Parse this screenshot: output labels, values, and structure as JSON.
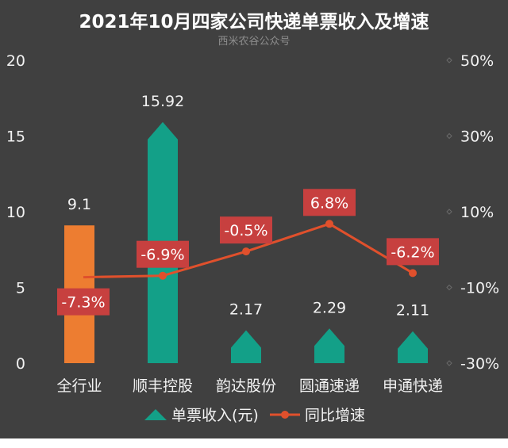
{
  "chart_data": {
    "type": "bar",
    "title": "2021年10月四家公司快递单票收入及增速",
    "subtitle": "西米农谷公众号",
    "categories": [
      "全行业",
      "顺丰控股",
      "韵达股份",
      "圆通速递",
      "申通快递"
    ],
    "series": [
      {
        "name": "单票收入(元)",
        "type": "bar",
        "axis": "left",
        "values": [
          9.1,
          15.92,
          2.17,
          2.29,
          2.11
        ],
        "value_labels": [
          "9.1",
          "15.92",
          "2.17",
          "2.29",
          "2.11"
        ],
        "colors": [
          "#ed7d31",
          "#13a088",
          "#13a088",
          "#13a088",
          "#13a088"
        ]
      },
      {
        "name": "同比增速",
        "type": "line",
        "axis": "right",
        "values": [
          -7.3,
          -6.9,
          -0.5,
          6.8,
          -6.2
        ],
        "value_labels": [
          "-7.3%",
          "-6.9%",
          "-0.5%",
          "6.8%",
          "-6.2%"
        ],
        "color": "#e0502c",
        "label_bg": "#c7403f"
      }
    ],
    "y_left": {
      "ylim": [
        0,
        20
      ],
      "ticks": [
        0,
        5,
        10,
        15,
        20
      ],
      "tick_labels": [
        "0",
        "5",
        "10",
        "15",
        "20"
      ]
    },
    "y_right": {
      "ylim": [
        -30,
        50
      ],
      "ticks": [
        -30,
        -10,
        10,
        30,
        50
      ],
      "tick_labels": [
        "-30%",
        "-10%",
        "10%",
        "30%",
        "50%"
      ]
    },
    "grid": false,
    "legend_position": "bottom",
    "background": "#404040"
  }
}
